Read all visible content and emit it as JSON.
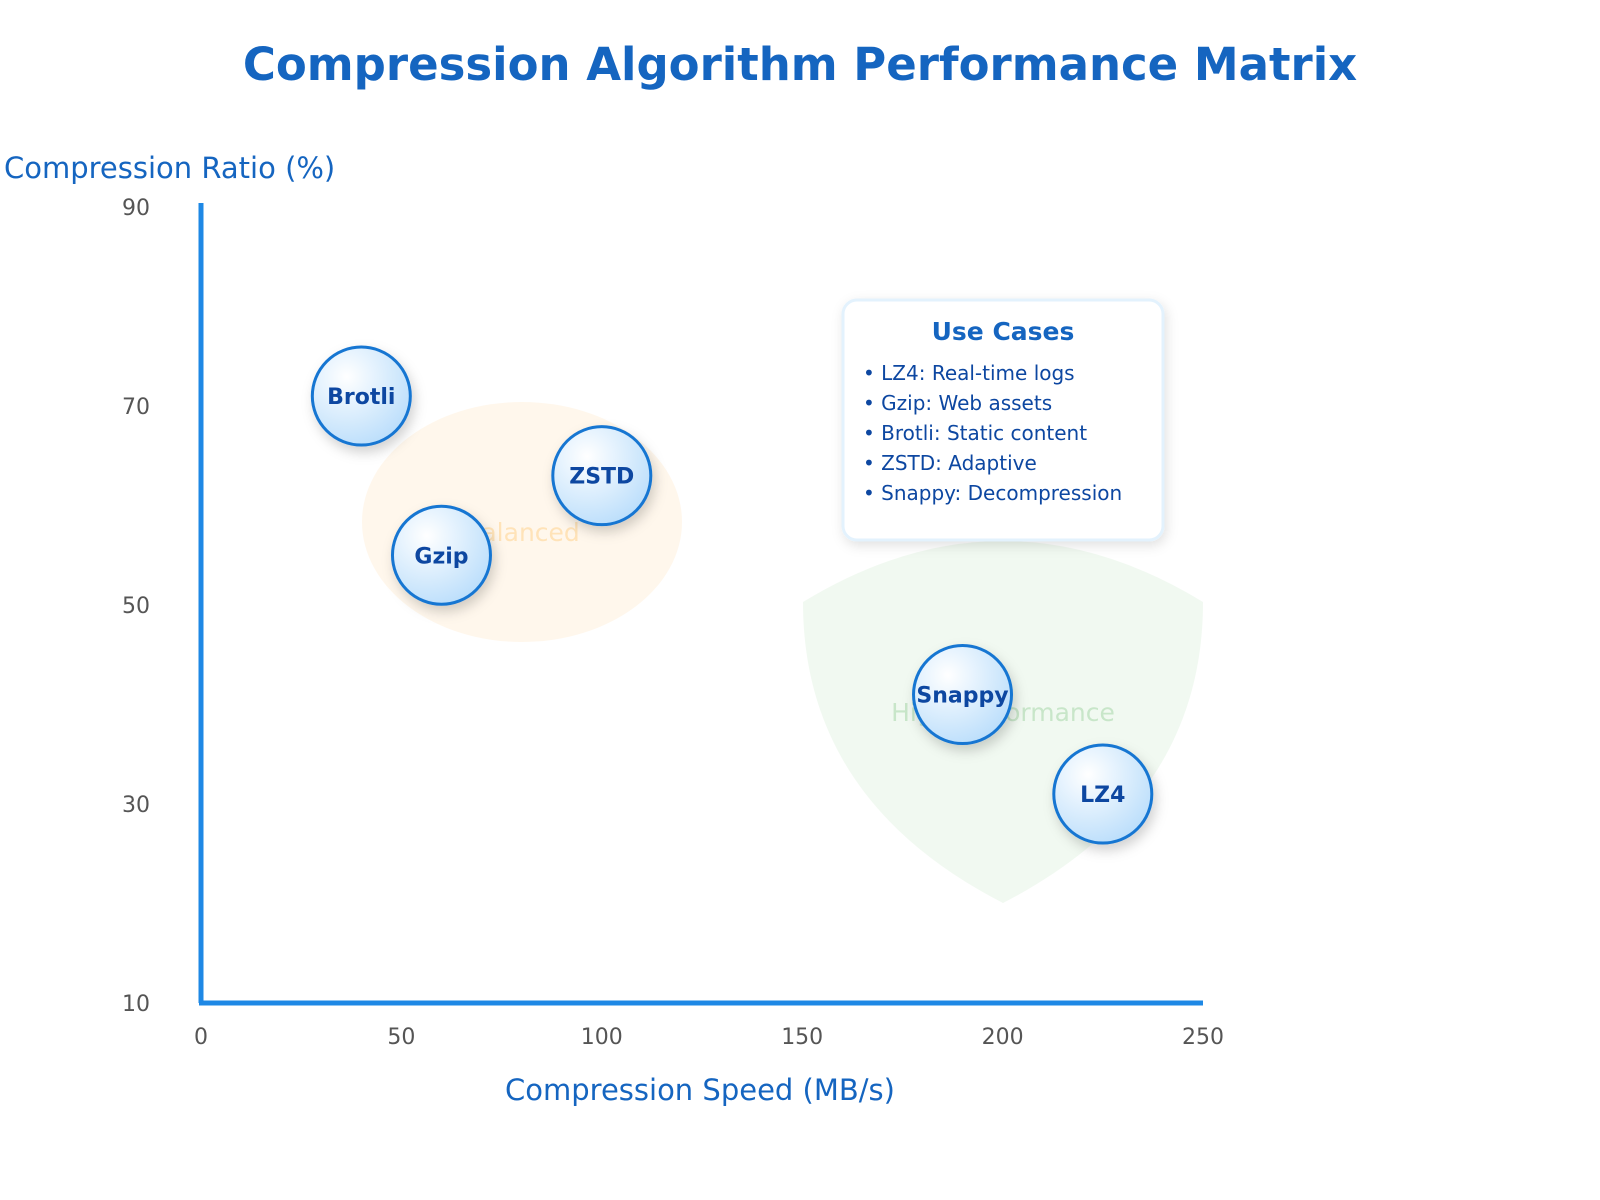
{
  "chart_data": {
    "type": "scatter",
    "title": "Compression Algorithm Performance Matrix",
    "xlabel": "Compression Speed (MB/s)",
    "ylabel": "Compression Ratio (%)",
    "xlim": [
      0,
      250
    ],
    "ylim": [
      10,
      90
    ],
    "xticks": [
      "0",
      "50",
      "100",
      "150",
      "200",
      "250"
    ],
    "yticks": [
      "10",
      "30",
      "50",
      "70",
      "90"
    ],
    "grid": false,
    "points": [
      {
        "label": "LZ4",
        "x": 225,
        "y": 31
      },
      {
        "label": "Gzip",
        "x": 60,
        "y": 55
      },
      {
        "label": "Brotli",
        "x": 40,
        "y": 71
      },
      {
        "label": "ZSTD",
        "x": 100,
        "y": 63
      },
      {
        "label": "Snappy",
        "x": 190,
        "y": 41
      }
    ],
    "regions": [
      {
        "label": "Balanced",
        "color": "#ffe0b2"
      },
      {
        "label": "High Performance",
        "color": "#c8e6c9"
      }
    ],
    "legend": {
      "title": "Use Cases",
      "placement": "top-right",
      "items": [
        "• LZ4: Real-time logs",
        "• Gzip: Web assets",
        "• Brotli: Static content",
        "• ZSTD: Adaptive",
        "• Snappy: Decompression"
      ]
    },
    "colors": {
      "accent": "#1565c0",
      "axis": "#1e88e5",
      "bubble_stroke": "#1976d2",
      "bubble_fill_light": "#e3f2fd",
      "bubble_fill_dark": "#90caf9"
    }
  }
}
